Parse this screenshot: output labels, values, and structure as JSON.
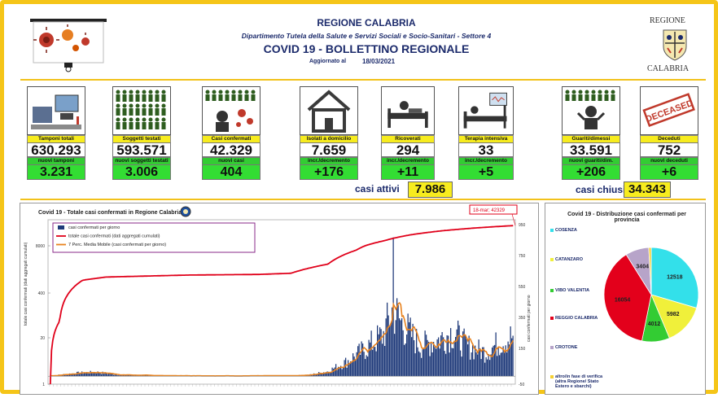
{
  "header": {
    "region_title": "REGIONE CALABRIA",
    "department": "Dipartimento Tutela della Salute e Servizi Sociali e Socio-Sanitari - Settore 4",
    "bulletin_title": "COVID 19 - BOLLETTINO REGIONALE",
    "updated_label": "Aggiornato al",
    "updated_date": "18/03/2021",
    "logo_top": "REGIONE",
    "logo_bottom": "CALABRIA"
  },
  "stats": [
    {
      "label": "Tamponi totali",
      "value": "630.293",
      "sub_label": "nuovi tamponi",
      "sub_value": "3.231",
      "icon": "lab-icon"
    },
    {
      "label": "Soggetti testati",
      "value": "593.571",
      "sub_label": "nuovi soggetti testati",
      "sub_value": "3.006",
      "icon": "crowd-icon"
    },
    {
      "label": "Casi confermati",
      "value": "42.329",
      "sub_label": "nuovi casi",
      "sub_value": "404",
      "icon": "patient-virus-icon"
    },
    {
      "label": "Isolati a domicilio",
      "value": "7.659",
      "sub_label": "incr./decremento",
      "sub_value": "+176",
      "icon": "house-icon"
    },
    {
      "label": "Ricoverati",
      "value": "294",
      "sub_label": "incr./decremento",
      "sub_value": "+11",
      "icon": "hospital-bed-icon"
    },
    {
      "label": "Terapia intensiva",
      "value": "33",
      "sub_label": "incr./decremento",
      "sub_value": "+5",
      "icon": "icu-icon"
    },
    {
      "label": "Guariti/dimessi",
      "value": "33.591",
      "sub_label": "nuovi guariti/dim.",
      "sub_value": "+206",
      "icon": "recovered-icon"
    },
    {
      "label": "Deceduti",
      "value": "752",
      "sub_label": "nuovi deceduti",
      "sub_value": "+6",
      "icon": "deceased-stamp-icon",
      "stamp": "DECEASED"
    }
  ],
  "totals": {
    "active_label": "casi attivi",
    "active_value": "7.986",
    "closed_label": "casi chiusi",
    "closed_value": "34.343"
  },
  "chart_data": [
    {
      "type": "bar",
      "title": "Covid 19 - Totale casi confermati in Regione Calabria",
      "ylabel_left": "totale casi confermati (dati aggregati cumulati)",
      "ylabel_right": "casi confermati per giorno",
      "left_ticks": [
        "8000",
        "400",
        "20",
        "1"
      ],
      "right_ticks": [
        "950",
        "750",
        "550",
        "350",
        "150",
        "-50"
      ],
      "annotation": "18-mar; 42329",
      "legend": [
        {
          "name": "casi confermati per giorno",
          "color": "#1f3a7a"
        },
        {
          "name": "totale casi confermati (dati aggregati cumulati)",
          "color": "#e0001a"
        },
        {
          "name": "7 Perc. Media Mobile (casi confermati per giorno)",
          "color": "#e8821e"
        }
      ],
      "daily_profile": [
        {
          "t": 0.0,
          "v": 2
        },
        {
          "t": 0.06,
          "v": 20
        },
        {
          "t": 0.1,
          "v": 25
        },
        {
          "t": 0.15,
          "v": 8
        },
        {
          "t": 0.25,
          "v": 3
        },
        {
          "t": 0.4,
          "v": 2
        },
        {
          "t": 0.52,
          "v": 3
        },
        {
          "t": 0.56,
          "v": 8
        },
        {
          "t": 0.6,
          "v": 30
        },
        {
          "t": 0.64,
          "v": 90
        },
        {
          "t": 0.68,
          "v": 170
        },
        {
          "t": 0.72,
          "v": 260
        },
        {
          "t": 0.74,
          "v": 420
        },
        {
          "t": 0.76,
          "v": 330
        },
        {
          "t": 0.8,
          "v": 190
        },
        {
          "t": 0.84,
          "v": 230
        },
        {
          "t": 0.87,
          "v": 280
        },
        {
          "t": 0.9,
          "v": 190
        },
        {
          "t": 0.94,
          "v": 150
        },
        {
          "t": 0.97,
          "v": 210
        },
        {
          "t": 1.0,
          "v": 250
        }
      ],
      "cumulative_profile": [
        {
          "t": 0.0,
          "v": 1
        },
        {
          "t": 0.02,
          "v": 60
        },
        {
          "t": 0.04,
          "v": 400
        },
        {
          "t": 0.07,
          "v": 900
        },
        {
          "t": 0.12,
          "v": 1100
        },
        {
          "t": 0.3,
          "v": 1250
        },
        {
          "t": 0.45,
          "v": 1300
        },
        {
          "t": 0.52,
          "v": 1400
        },
        {
          "t": 0.6,
          "v": 2500
        },
        {
          "t": 0.66,
          "v": 6000
        },
        {
          "t": 0.72,
          "v": 12000
        },
        {
          "t": 0.78,
          "v": 20000
        },
        {
          "t": 0.85,
          "v": 28000
        },
        {
          "t": 0.92,
          "v": 35000
        },
        {
          "t": 1.0,
          "v": 42329
        }
      ]
    },
    {
      "type": "pie",
      "title": "Covid 19 - Distribuzione casi confermati per provincia",
      "slices": [
        {
          "label": "COSENZA",
          "value": 12518,
          "color": "#33e0ea"
        },
        {
          "label": "CATANZARO",
          "value": 5982,
          "color": "#f0f03a"
        },
        {
          "label": "VIBO VALENTIA",
          "value": 4012,
          "color": "#33cc33"
        },
        {
          "label": "REGGIO CALABRIA",
          "value": 16054,
          "color": "#e3001b"
        },
        {
          "label": "CROTONE",
          "value": 3404,
          "color": "#b7a4c9"
        },
        {
          "label": "altro/in fase di verifica (altra Regione/ Stato Estero e sbarchi)",
          "value": 359,
          "color": "#f5d033"
        }
      ]
    }
  ]
}
